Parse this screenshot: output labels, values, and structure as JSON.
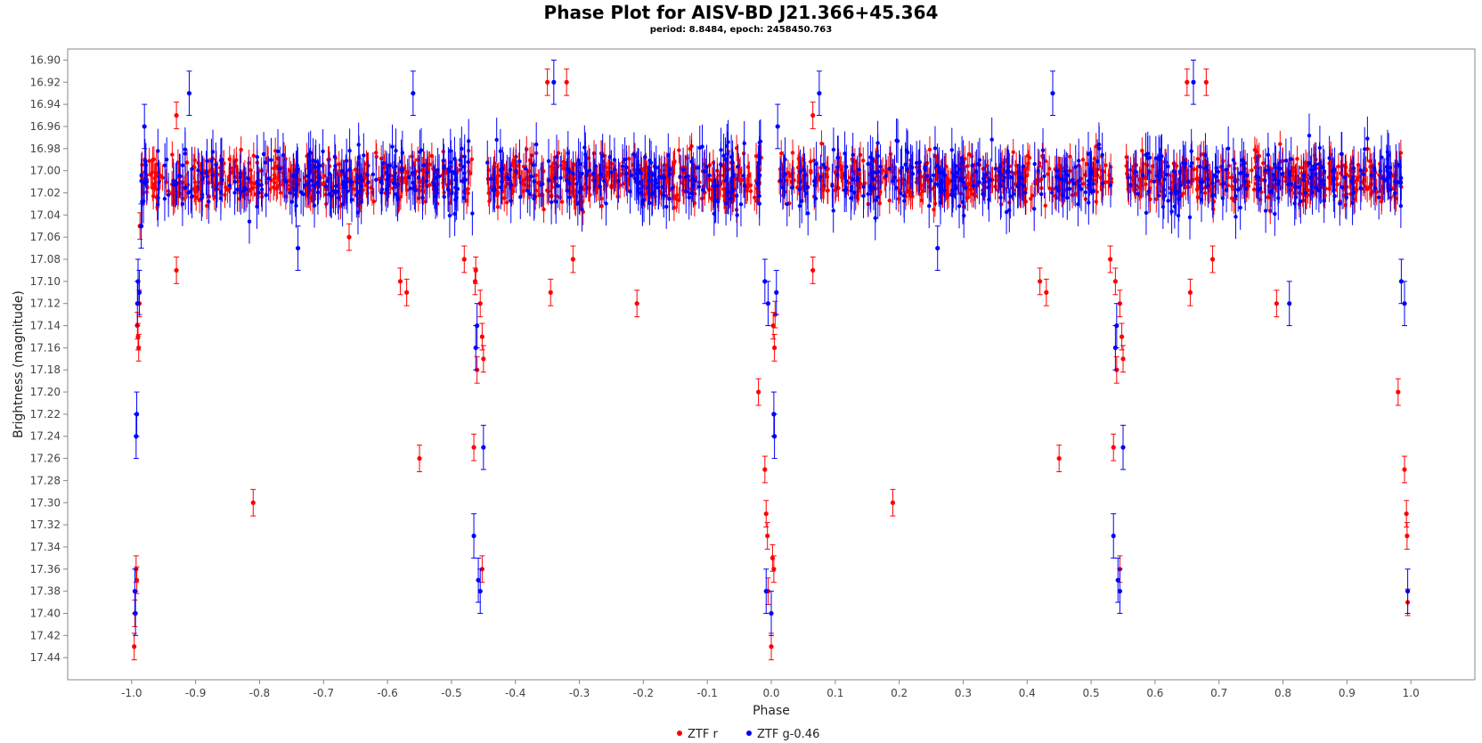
{
  "chart_data": {
    "type": "scatter",
    "title": "Phase Plot for AISV-BD J21.366+45.364",
    "subtitle": "period: 8.8484, epoch: 2458450.763",
    "xlabel": "Phase",
    "ylabel": "Brightness (magnitude)",
    "xlim": [
      -1.1,
      1.1
    ],
    "ylim": [
      17.46,
      16.89
    ],
    "y_inverted": true,
    "grid": false,
    "legend_position": "bottom-center",
    "x_ticks": [
      "-1.0",
      "-0.9",
      "-0.8",
      "-0.7",
      "-0.6",
      "-0.5",
      "-0.4",
      "-0.3",
      "-0.2",
      "-0.1",
      "0.0",
      "0.1",
      "0.2",
      "0.3",
      "0.4",
      "0.5",
      "0.6",
      "0.7",
      "0.8",
      "0.9",
      "1.0"
    ],
    "y_ticks": [
      "16.90",
      "16.92",
      "16.94",
      "16.96",
      "16.98",
      "17.00",
      "17.02",
      "17.04",
      "17.06",
      "17.08",
      "17.10",
      "17.12",
      "17.14",
      "17.16",
      "17.18",
      "17.20",
      "17.22",
      "17.24",
      "17.26",
      "17.28",
      "17.30",
      "17.32",
      "17.34",
      "17.36",
      "17.38",
      "17.40",
      "17.42",
      "17.44"
    ],
    "series": [
      {
        "name": "ZTF r",
        "color": "#ff0000",
        "error": 0.012,
        "points": [
          [
            -0.995,
            17.4
          ],
          [
            -0.993,
            17.36
          ],
          [
            -0.992,
            17.37
          ],
          [
            -0.996,
            17.43
          ],
          [
            -0.99,
            17.15
          ],
          [
            -0.991,
            17.14
          ],
          [
            -0.989,
            17.16
          ],
          [
            -0.988,
            17.12
          ],
          [
            -0.987,
            17.05
          ],
          [
            -0.93,
            17.09
          ],
          [
            -0.93,
            16.95
          ],
          [
            -0.81,
            17.3
          ],
          [
            -0.66,
            17.06
          ],
          [
            -0.58,
            17.1
          ],
          [
            -0.57,
            17.11
          ],
          [
            -0.55,
            17.26
          ],
          [
            -0.48,
            17.08
          ],
          [
            -0.465,
            17.25
          ],
          [
            -0.46,
            17.18
          ],
          [
            -0.463,
            17.1
          ],
          [
            -0.455,
            17.12
          ],
          [
            -0.452,
            17.15
          ],
          [
            -0.45,
            17.17
          ],
          [
            -0.452,
            17.36
          ],
          [
            -0.462,
            17.09
          ],
          [
            -0.35,
            16.92
          ],
          [
            -0.345,
            17.11
          ],
          [
            -0.32,
            16.92
          ],
          [
            -0.31,
            17.08
          ],
          [
            -0.21,
            17.12
          ],
          [
            -0.02,
            17.2
          ],
          [
            -0.01,
            17.27
          ],
          [
            -0.008,
            17.31
          ],
          [
            -0.006,
            17.33
          ],
          [
            -0.005,
            17.38
          ],
          [
            0.0,
            17.43
          ],
          [
            0.002,
            17.35
          ],
          [
            0.004,
            17.36
          ],
          [
            0.003,
            17.14
          ],
          [
            0.005,
            17.16
          ],
          [
            0.006,
            17.13
          ],
          [
            0.065,
            17.09
          ],
          [
            0.065,
            16.95
          ],
          [
            0.19,
            17.3
          ],
          [
            0.42,
            17.1
          ],
          [
            0.43,
            17.11
          ],
          [
            0.45,
            17.26
          ],
          [
            0.53,
            17.08
          ],
          [
            0.535,
            17.25
          ],
          [
            0.54,
            17.18
          ],
          [
            0.538,
            17.1
          ],
          [
            0.545,
            17.12
          ],
          [
            0.548,
            17.15
          ],
          [
            0.55,
            17.17
          ],
          [
            0.545,
            17.36
          ],
          [
            0.65,
            16.92
          ],
          [
            0.655,
            17.11
          ],
          [
            0.68,
            16.92
          ],
          [
            0.69,
            17.08
          ],
          [
            0.79,
            17.12
          ],
          [
            0.98,
            17.2
          ],
          [
            0.99,
            17.27
          ],
          [
            0.993,
            17.31
          ],
          [
            0.994,
            17.33
          ],
          [
            0.995,
            17.39
          ]
        ]
      },
      {
        "name": "ZTF g-0.46",
        "color": "#0000ff",
        "error": 0.02,
        "points": [
          [
            -0.995,
            17.38
          ],
          [
            -0.994,
            17.4
          ],
          [
            -0.992,
            17.22
          ],
          [
            -0.993,
            17.24
          ],
          [
            -0.99,
            17.1
          ],
          [
            -0.988,
            17.11
          ],
          [
            -0.991,
            17.12
          ],
          [
            -0.985,
            17.05
          ],
          [
            -0.98,
            16.96
          ],
          [
            -0.91,
            16.93
          ],
          [
            -0.74,
            17.07
          ],
          [
            -0.56,
            16.93
          ],
          [
            -0.465,
            17.33
          ],
          [
            -0.46,
            17.14
          ],
          [
            -0.462,
            17.16
          ],
          [
            -0.458,
            17.37
          ],
          [
            -0.455,
            17.38
          ],
          [
            -0.45,
            17.25
          ],
          [
            -0.34,
            16.92
          ],
          [
            -0.01,
            17.1
          ],
          [
            -0.005,
            17.12
          ],
          [
            -0.008,
            17.38
          ],
          [
            0.0,
            17.4
          ],
          [
            0.004,
            17.22
          ],
          [
            0.005,
            17.24
          ],
          [
            0.008,
            17.11
          ],
          [
            0.01,
            16.96
          ],
          [
            0.075,
            16.93
          ],
          [
            0.26,
            17.07
          ],
          [
            0.44,
            16.93
          ],
          [
            0.535,
            17.33
          ],
          [
            0.54,
            17.14
          ],
          [
            0.538,
            17.16
          ],
          [
            0.542,
            17.37
          ],
          [
            0.545,
            17.38
          ],
          [
            0.55,
            17.25
          ],
          [
            0.66,
            16.92
          ],
          [
            0.81,
            17.12
          ],
          [
            0.985,
            17.1
          ],
          [
            0.99,
            17.12
          ],
          [
            0.995,
            17.38
          ]
        ]
      }
    ],
    "legend": [
      {
        "label": "ZTF r",
        "color": "#ff0000"
      },
      {
        "label": "ZTF g-0.46",
        "color": "#0000ff"
      }
    ]
  }
}
